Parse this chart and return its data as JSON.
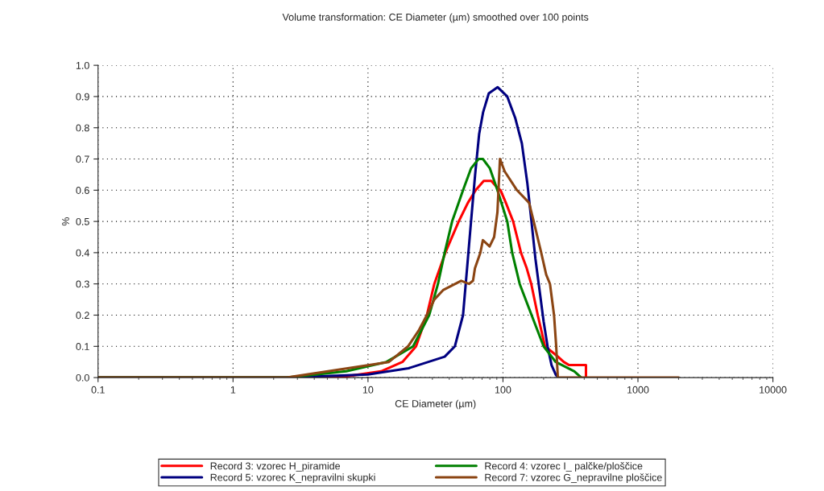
{
  "chart_data": {
    "type": "line",
    "title": "Volume transformation: CE Diameter (µm) smoothed over 100 points",
    "xlabel": "CE Diameter (µm)",
    "ylabel": "%",
    "log": "x",
    "xlim": [
      0.1,
      10000
    ],
    "xticks": [
      0.1,
      1,
      10,
      100,
      1000,
      10000
    ],
    "ylim": [
      0,
      1.0
    ],
    "yticks": [
      {
        "value": 0,
        "label": "0.0"
      },
      {
        "value": 0.1,
        "label": "0.1"
      },
      {
        "value": 0.2,
        "label": "0.2"
      },
      {
        "value": 0.3,
        "label": "0.3"
      },
      {
        "value": 0.4,
        "label": "0.4"
      },
      {
        "value": 0.5,
        "label": "0.5"
      },
      {
        "value": 0.6,
        "label": "0.6"
      },
      {
        "value": 0.7,
        "label": "0.7"
      },
      {
        "value": 0.8,
        "label": "0.8"
      },
      {
        "value": 0.9,
        "label": "0.9"
      },
      {
        "value": 1.0,
        "label": "1.0"
      }
    ],
    "grid": true,
    "legend": "bottom",
    "line_style": "solid",
    "marker": "none",
    "series": [
      {
        "name": "Record 3: vzorec H_piramide",
        "color": "#ff0000",
        "x": [
          0.1,
          6,
          12.5,
          18,
          22.7,
          27.3,
          31,
          37.4,
          47,
          55,
          62.8,
          72,
          82,
          90,
          96,
          105,
          119,
          136,
          150,
          162,
          181,
          205,
          251,
          282,
          309,
          412,
          412
        ],
        "values": [
          0,
          0,
          0.02,
          0.05,
          0.1,
          0.2,
          0.3,
          0.4,
          0.5,
          0.56,
          0.6,
          0.63,
          0.63,
          0.61,
          0.6,
          0.56,
          0.5,
          0.4,
          0.35,
          0.3,
          0.2,
          0.1,
          0.07,
          0.05,
          0.04,
          0.04,
          0
        ]
      },
      {
        "name": "Record 5: vzorec K_nepravilni skupki",
        "color": "#000080",
        "x": [
          0.1,
          2.5,
          10,
          20,
          37,
          44,
          50.6,
          54.2,
          58,
          62.2,
          66.6,
          71.3,
          78.5,
          91.4,
          107.6,
          123.5,
          138,
          151.8,
          162.6,
          174,
          186.6,
          200,
          214,
          229,
          245.7,
          256
        ],
        "values": [
          0,
          0,
          0.01,
          0.03,
          0.067,
          0.1,
          0.2,
          0.35,
          0.5,
          0.65,
          0.78,
          0.85,
          0.91,
          0.93,
          0.9,
          0.83,
          0.75,
          0.62,
          0.5,
          0.38,
          0.28,
          0.18,
          0.1,
          0.04,
          0.01,
          0
        ]
      },
      {
        "name": "Record 4: vzorec I_ palčke/ploščice",
        "color": "#008000",
        "x": [
          0.1,
          2.5,
          6.9,
          13.7,
          21.6,
          28.4,
          33,
          37,
          42,
          50.6,
          58,
          66,
          71,
          80,
          91,
          107.6,
          117,
          133,
          163,
          200,
          246,
          338,
          380
        ],
        "values": [
          0,
          0,
          0.02,
          0.05,
          0.1,
          0.2,
          0.3,
          0.4,
          0.5,
          0.6,
          0.67,
          0.7,
          0.7,
          0.67,
          0.6,
          0.5,
          0.4,
          0.3,
          0.2,
          0.1,
          0.05,
          0.02,
          0
        ]
      },
      {
        "name": "Record 7: vzorec G_nepravilne ploščice",
        "color": "#8b4513",
        "x": [
          0.1,
          2.5,
          14.3,
          19.8,
          23.7,
          27.3,
          31,
          36,
          49,
          56,
          60,
          62,
          68,
          71,
          79.6,
          86,
          91,
          95,
          103,
          127,
          156,
          169,
          192,
          209,
          223,
          239,
          248,
          255,
          2000
        ],
        "values": [
          0,
          0,
          0.05,
          0.1,
          0.15,
          0.2,
          0.25,
          0.28,
          0.31,
          0.3,
          0.31,
          0.35,
          0.4,
          0.44,
          0.42,
          0.45,
          0.53,
          0.7,
          0.66,
          0.6,
          0.56,
          0.5,
          0.4,
          0.33,
          0.3,
          0.2,
          0.1,
          0,
          0
        ]
      }
    ]
  }
}
